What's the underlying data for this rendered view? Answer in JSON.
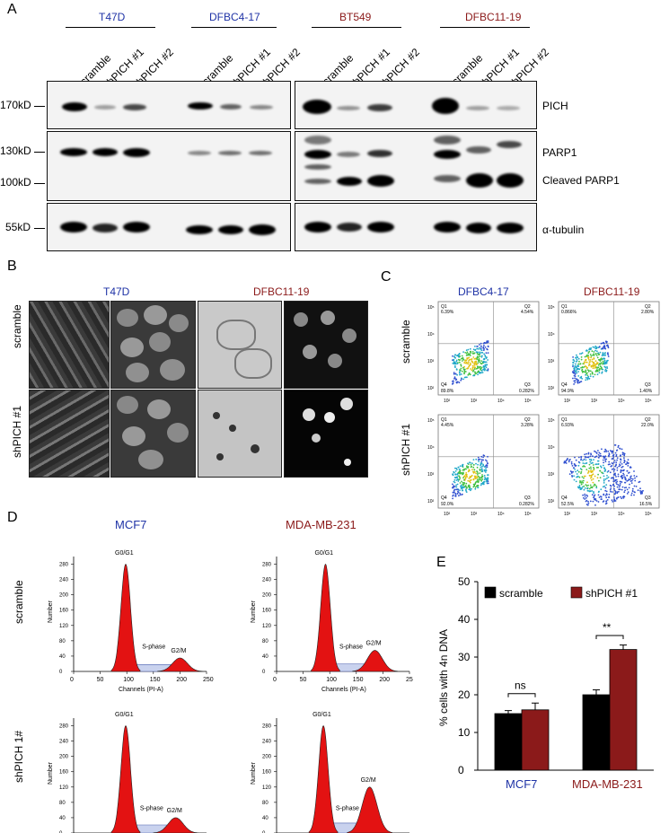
{
  "panels": {
    "A": "A",
    "B": "B",
    "C": "C",
    "D": "D",
    "E": "E"
  },
  "panelA": {
    "cell_lines": [
      {
        "name": "T47D",
        "color": "#1f33a6"
      },
      {
        "name": "DFBC4-17",
        "color": "#1f33a6"
      },
      {
        "name": "BT549",
        "color": "#8b1a1a"
      },
      {
        "name": "DFBC11-19",
        "color": "#8b1a1a"
      }
    ],
    "lanes": [
      "scramble",
      "shPICH #1",
      "shPICH #2"
    ],
    "markers": [
      "170kD",
      "130kD",
      "100kD",
      "55kD"
    ],
    "proteins": [
      "PICH",
      "PARP1",
      "Cleaved PARP1",
      "α-tubulin"
    ]
  },
  "panelB": {
    "cols": [
      "T47D",
      "DFBC11-19"
    ],
    "rows": [
      "scramble",
      "shPICH #1"
    ]
  },
  "panelC": {
    "cols": [
      "DFBC4-17",
      "DFBC11-19"
    ],
    "rows": [
      "scramble",
      "shPICH #1"
    ],
    "plots": [
      {
        "q1": "6.39%",
        "q2": "4.54%",
        "q3": "0.282%",
        "q4": "89.8%"
      },
      {
        "q1": "0.866%",
        "q2": "2.80%",
        "q3": "1.40%",
        "q4": "94.9%"
      },
      {
        "q1": "4.45%",
        "q2": "3.28%",
        "q3": "0.282%",
        "q4": "92.0%"
      },
      {
        "q1": "6.93%",
        "q2": "22.0%",
        "q3": "16.5%",
        "q4": "52.5%"
      }
    ],
    "qlabels": [
      "Q1",
      "Q2",
      "Q3",
      "Q4"
    ],
    "ticks": [
      "10²",
      "10³",
      "10⁴",
      "10⁵"
    ],
    "yticks": [
      "10⁵",
      "10⁴",
      "10³",
      "10²"
    ]
  },
  "panelD": {
    "cols": [
      "MCF7",
      "MDA-MB-231"
    ],
    "rows": [
      "scramble",
      "shPICH 1#"
    ],
    "ylabel": "Number",
    "xlabel": "Channels (PI-A)",
    "peaks": {
      "g0": "G0/G1",
      "s": "S-phase",
      "g2": "G2/M"
    },
    "xticks": [
      "0",
      "50",
      "100",
      "150",
      "200",
      "250"
    ],
    "yticks": [
      "0",
      "40",
      "80",
      "120",
      "160",
      "200",
      "240",
      "280"
    ]
  },
  "chart_data": {
    "type": "bar",
    "categories": [
      "MCF7",
      "MDA-MB-231"
    ],
    "series": [
      {
        "name": "scramble",
        "values": [
          15,
          20
        ],
        "errors": [
          0.8,
          1.3
        ],
        "color": "#000000"
      },
      {
        "name": "shPICH #1",
        "values": [
          16,
          32
        ],
        "errors": [
          1.8,
          1.2
        ],
        "color": "#8b1a1a"
      }
    ],
    "ylabel": "% cells with 4n DNA",
    "xlabel": "",
    "ylim": [
      0,
      50
    ],
    "yticks": [
      "0",
      "10",
      "20",
      "30",
      "40",
      "50"
    ],
    "significance": [
      "ns",
      "**"
    ],
    "legend_position": "top"
  }
}
